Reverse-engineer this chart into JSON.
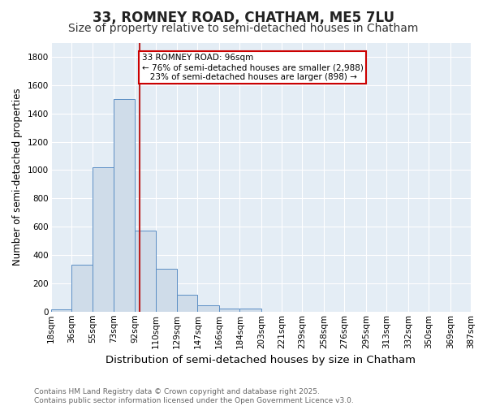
{
  "title1": "33, ROMNEY ROAD, CHATHAM, ME5 7LU",
  "title2": "Size of property relative to semi-detached houses in Chatham",
  "xlabel": "Distribution of semi-detached houses by size in Chatham",
  "ylabel": "Number of semi-detached properties",
  "bin_edges": [
    18,
    36,
    55,
    73,
    92,
    110,
    129,
    147,
    166,
    184,
    203,
    221,
    239,
    258,
    276,
    295,
    313,
    332,
    350,
    369,
    387
  ],
  "bar_heights": [
    18,
    330,
    1020,
    1500,
    570,
    300,
    120,
    45,
    20,
    20,
    0,
    0,
    0,
    0,
    0,
    0,
    0,
    0,
    0,
    0
  ],
  "bar_color": "#cfdce9",
  "bar_edge_color": "#5b8ec4",
  "red_line_x": 96,
  "annotation_line1": "33 ROMNEY ROAD: 96sqm",
  "annotation_line2": "← 76% of semi-detached houses are smaller (2,988)",
  "annotation_line3": "   23% of semi-detached houses are larger (898) →",
  "annotation_box_facecolor": "#ffffff",
  "annotation_box_edgecolor": "#cc0000",
  "ylim": [
    0,
    1900
  ],
  "yticks": [
    0,
    200,
    400,
    600,
    800,
    1000,
    1200,
    1400,
    1600,
    1800
  ],
  "plot_bg_color": "#e4edf5",
  "fig_bg_color": "#ffffff",
  "footer_text": "Contains HM Land Registry data © Crown copyright and database right 2025.\nContains public sector information licensed under the Open Government Licence v3.0.",
  "title1_fontsize": 12,
  "title2_fontsize": 10,
  "ylabel_fontsize": 8.5,
  "xlabel_fontsize": 9.5,
  "tick_fontsize": 7.5,
  "footer_fontsize": 6.5,
  "ann_fontsize": 7.5
}
